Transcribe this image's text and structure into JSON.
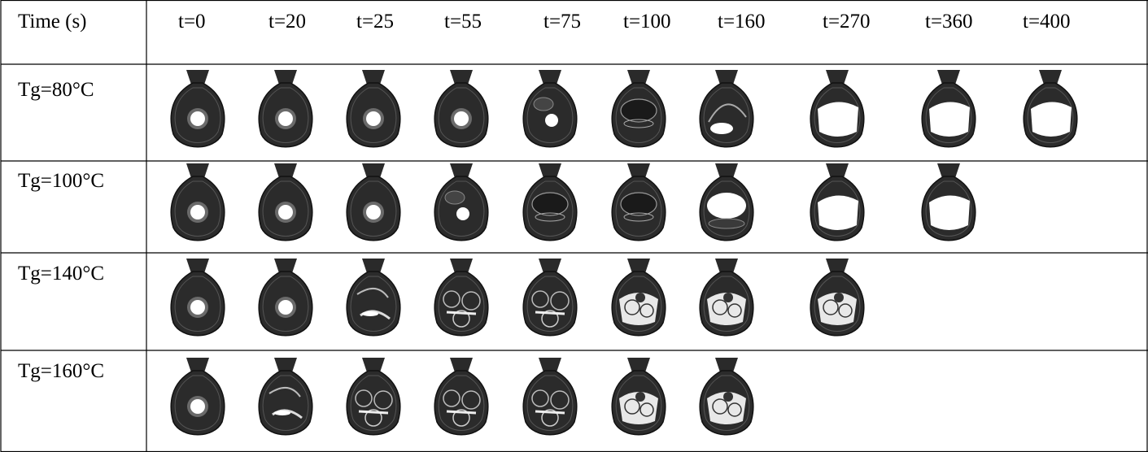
{
  "table": {
    "header_label": "Time (s)",
    "time_points": [
      "t=0",
      "t=20",
      "t=25",
      "t=55",
      "t=75",
      "t=100",
      "t=160",
      "t=270",
      "t=360",
      "t=400"
    ],
    "rows": [
      {
        "label": "Tg=80°C",
        "frames": [
          {
            "stage": 1
          },
          {
            "stage": 1
          },
          {
            "stage": 1
          },
          {
            "stage": 1
          },
          {
            "stage": 2
          },
          {
            "stage": 3
          },
          {
            "stage": 4
          },
          {
            "stage": 6
          },
          {
            "stage": 6
          },
          {
            "stage": 6
          }
        ]
      },
      {
        "label": "Tg=100°C",
        "frames": [
          {
            "stage": 1
          },
          {
            "stage": 1
          },
          {
            "stage": 1
          },
          {
            "stage": 2
          },
          {
            "stage": 3
          },
          {
            "stage": 3
          },
          {
            "stage": 5
          },
          {
            "stage": 6
          },
          {
            "stage": 6
          }
        ]
      },
      {
        "label": "Tg=140°C",
        "frames": [
          {
            "stage": 1
          },
          {
            "stage": 1
          },
          {
            "stage": 7
          },
          {
            "stage": 8
          },
          {
            "stage": 8
          },
          {
            "stage": 9
          },
          {
            "stage": 9
          },
          {
            "stage": 9
          }
        ]
      },
      {
        "label": "Tg=160°C",
        "frames": [
          {
            "stage": 1
          },
          {
            "stage": 7
          },
          {
            "stage": 8
          },
          {
            "stage": 8
          },
          {
            "stage": 8
          },
          {
            "stage": 9
          },
          {
            "stage": 9
          }
        ]
      }
    ]
  }
}
